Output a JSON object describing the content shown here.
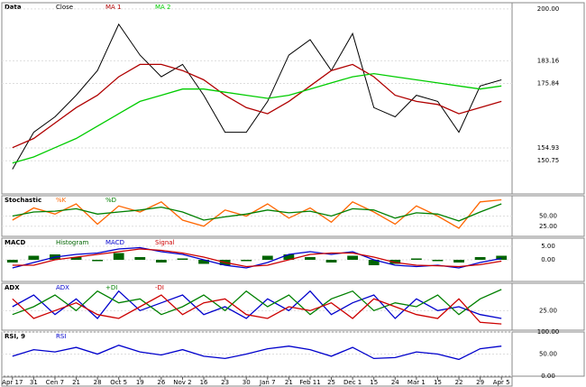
{
  "chart_data": [
    {
      "type": "line",
      "title": "Data",
      "categories": [
        "Apr 17",
        "31",
        "Cen 7",
        "21",
        "28",
        "Oct 5",
        "19",
        "26",
        "Nov 2",
        "16",
        "23",
        "30",
        "Jan 7",
        "21",
        "Feb 11",
        "25",
        "Dec 1",
        "15",
        "24",
        "Mar 1",
        "15",
        "22",
        "29",
        "Apr 5"
      ],
      "ylim": [
        140,
        202
      ],
      "yticks": [
        {
          "value": 200,
          "label": "200.00"
        },
        {
          "value": 183.16,
          "label": "183.16"
        },
        {
          "value": 175.84,
          "label": "175.84"
        },
        {
          "value": 154.93,
          "label": "154.93"
        },
        {
          "value": 150.75,
          "label": "150.75"
        }
      ],
      "series": [
        {
          "name": "Close",
          "color": "#000000",
          "values": [
            148,
            160,
            165,
            172,
            180,
            195,
            185,
            178,
            182,
            172,
            160,
            160,
            170,
            185,
            190,
            180,
            192,
            168,
            165,
            172,
            170,
            160,
            175,
            177
          ]
        },
        {
          "name": "MA 1",
          "color": "#b00000",
          "values": [
            155,
            158,
            163,
            168,
            172,
            178,
            182,
            182,
            180,
            177,
            172,
            168,
            166,
            170,
            175,
            180,
            182,
            178,
            172,
            170,
            169,
            166,
            168,
            170
          ]
        },
        {
          "name": "MA 2",
          "color": "#00cc00",
          "values": [
            150,
            152,
            155,
            158,
            162,
            166,
            170,
            172,
            174,
            174,
            173,
            172,
            171,
            172,
            174,
            176,
            178,
            179,
            178,
            177,
            176,
            175,
            174,
            175
          ]
        }
      ]
    },
    {
      "type": "line",
      "title": "Stochastic",
      "ylim": [
        0,
        100
      ],
      "yticks": [
        {
          "value": 50,
          "label": "50.00"
        },
        {
          "value": 25,
          "label": "25.00"
        }
      ],
      "series": [
        {
          "name": "%K",
          "color": "#ff6600",
          "values": [
            40,
            70,
            55,
            80,
            30,
            75,
            60,
            85,
            40,
            25,
            65,
            50,
            80,
            45,
            70,
            35,
            85,
            60,
            30,
            75,
            50,
            20,
            85,
            90
          ]
        },
        {
          "name": "%D",
          "color": "#008000",
          "values": [
            50,
            60,
            62,
            68,
            55,
            60,
            65,
            72,
            60,
            40,
            48,
            55,
            65,
            58,
            62,
            50,
            68,
            65,
            45,
            58,
            55,
            38,
            60,
            80
          ]
        }
      ]
    },
    {
      "type": "line",
      "title": "MACD",
      "ylim": [
        -8,
        8
      ],
      "yticks": [
        {
          "value": 5,
          "label": "5.00"
        },
        {
          "value": 0,
          "label": "0.00"
        }
      ],
      "series": [
        {
          "name": "Histogram",
          "color": "#006400",
          "bar": true,
          "values": [
            -1,
            1.5,
            2,
            1,
            -0.5,
            2.5,
            1,
            -1,
            0.5,
            -1.5,
            -2,
            -0.5,
            1.5,
            2,
            1,
            -1,
            1.5,
            -2,
            -1.5,
            0.5,
            -0.5,
            -1,
            1,
            1.5
          ]
        },
        {
          "name": "MACD",
          "color": "#0000cc",
          "values": [
            -3,
            -1,
            1,
            2,
            2.5,
            4,
            4.5,
            3,
            2,
            0,
            -2,
            -3,
            -1,
            2,
            3,
            2,
            3,
            0,
            -2,
            -2.5,
            -2,
            -3,
            -1,
            0.5
          ]
        },
        {
          "name": "Signal",
          "color": "#cc0000",
          "values": [
            -2,
            -2,
            0,
            1,
            2,
            3,
            4,
            3.5,
            2.5,
            1,
            -1,
            -2.5,
            -2,
            0,
            2,
            2.5,
            2.5,
            1,
            -1,
            -2,
            -2.2,
            -2.5,
            -1.8,
            -0.5
          ]
        }
      ]
    },
    {
      "type": "line",
      "title": "ADX",
      "ylim": [
        0,
        60
      ],
      "yticks": [
        {
          "value": 25,
          "label": "25.00"
        }
      ],
      "series": [
        {
          "name": "ADX",
          "color": "#0000cc",
          "values": [
            30,
            45,
            20,
            40,
            15,
            50,
            25,
            35,
            45,
            20,
            30,
            15,
            40,
            25,
            50,
            20,
            35,
            45,
            15,
            40,
            25,
            30,
            20,
            15
          ]
        },
        {
          "name": "+DI",
          "color": "#008000",
          "values": [
            20,
            30,
            45,
            25,
            50,
            35,
            40,
            20,
            30,
            45,
            25,
            50,
            30,
            45,
            20,
            40,
            50,
            25,
            35,
            30,
            45,
            20,
            40,
            52
          ]
        },
        {
          "name": "-DI",
          "color": "#cc0000",
          "values": [
            40,
            15,
            25,
            35,
            20,
            15,
            30,
            45,
            20,
            35,
            40,
            20,
            15,
            30,
            25,
            35,
            15,
            40,
            30,
            20,
            15,
            40,
            10,
            8
          ]
        }
      ]
    },
    {
      "type": "line",
      "title": "RSI, 9",
      "ylim": [
        0,
        100
      ],
      "yticks": [
        {
          "value": 100,
          "label": "100.00"
        },
        {
          "value": 50,
          "label": "50.00"
        },
        {
          "value": 0,
          "label": "0.00"
        }
      ],
      "series": [
        {
          "name": "RSI",
          "color": "#0000cc",
          "values": [
            45,
            60,
            55,
            65,
            50,
            70,
            55,
            48,
            60,
            45,
            40,
            50,
            62,
            68,
            60,
            45,
            65,
            40,
            42,
            55,
            50,
            38,
            62,
            68
          ]
        }
      ]
    }
  ]
}
